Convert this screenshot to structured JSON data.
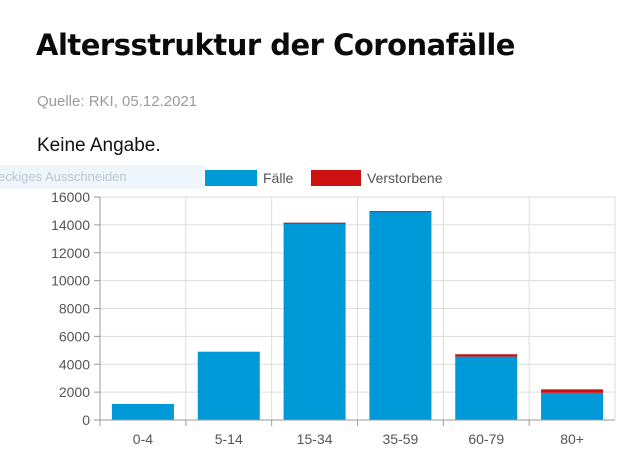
{
  "header": {
    "title": "Altersstruktur der Coronafälle",
    "source": "Quelle: RKI, 05.12.2021",
    "note": "Keine Angabe."
  },
  "overlay": {
    "tooltip_text": "eckiges Ausschneiden"
  },
  "colors": {
    "cases": "#0099d8",
    "deaths": "#cc1111",
    "grid": "#dddddd",
    "axis": "#999999"
  },
  "chart_data": {
    "type": "bar",
    "stacked": true,
    "categories": [
      "0-4",
      "5-14",
      "15-34",
      "35-59",
      "60-79",
      "80+"
    ],
    "series": [
      {
        "name": "Fälle",
        "values": [
          1150,
          4900,
          14150,
          14950,
          4550,
          1950
        ]
      },
      {
        "name": "Verstorbene",
        "values": [
          0,
          0,
          5,
          40,
          170,
          250
        ]
      }
    ],
    "ylim": [
      0,
      16000
    ],
    "yticks": [
      0,
      2000,
      4000,
      6000,
      8000,
      10000,
      12000,
      14000,
      16000
    ],
    "grid": true,
    "legend_position": "top",
    "xlabel": "",
    "ylabel": ""
  }
}
